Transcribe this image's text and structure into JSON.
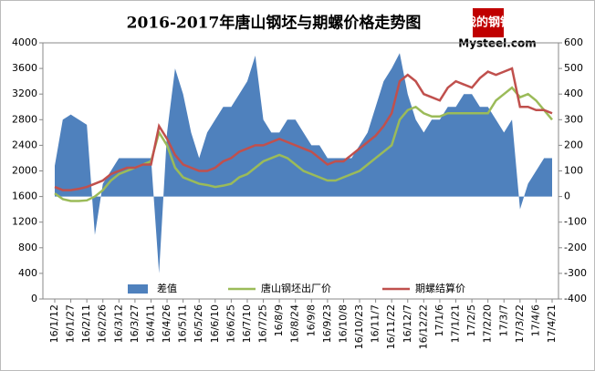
{
  "chart_data": {
    "type": "area-line",
    "title": "2016-2017年唐山钢坯与期螺价格走势图",
    "logo": "我的钢铁",
    "logo_site": "Mysteel.com",
    "categories": [
      "16/1/12",
      null,
      "16/1/27",
      null,
      "16/2/11",
      null,
      "16/2/26",
      null,
      "16/3/12",
      null,
      "16/3/27",
      null,
      "16/4/11",
      null,
      "16/4/26",
      null,
      "16/5/11",
      null,
      "16/5/26",
      null,
      "16/6/10",
      null,
      "16/6/25",
      null,
      "16/7/10",
      null,
      "16/7/25",
      null,
      "16/8/9",
      null,
      "16/8/24",
      null,
      "16/9/8",
      null,
      "16/9/23",
      null,
      "16/10/8",
      null,
      "16/10/23",
      null,
      "16/11/7",
      null,
      "16/11/22",
      null,
      "16/12/7",
      null,
      "16/12/22",
      null,
      "17/1/6",
      null,
      "17/1/21",
      null,
      "17/2/5",
      null,
      "17/2/20",
      null,
      "17/3/7",
      null,
      "17/3/22",
      null,
      "17/4/6",
      null,
      "17/4/21"
    ],
    "series": [
      {
        "name": "差值",
        "kind": "area",
        "axis": "y2",
        "color": "#4f81bd",
        "values": [
          120,
          300,
          320,
          300,
          280,
          -150,
          50,
          100,
          150,
          150,
          150,
          150,
          150,
          -300,
          250,
          500,
          400,
          250,
          150,
          250,
          300,
          350,
          350,
          400,
          450,
          550,
          300,
          250,
          250,
          300,
          300,
          250,
          200,
          200,
          150,
          150,
          150,
          150,
          200,
          250,
          350,
          450,
          500,
          560,
          400,
          300,
          250,
          300,
          300,
          350,
          350,
          400,
          400,
          350,
          350,
          300,
          250,
          300,
          -50,
          50,
          100,
          150,
          150
        ]
      },
      {
        "name": "唐山钢坯出厂价",
        "kind": "line",
        "color": "#9bbb59",
        "values": [
          1650,
          1560,
          1530,
          1530,
          1540,
          1600,
          1700,
          1850,
          1950,
          2000,
          2050,
          2100,
          2150,
          2600,
          2400,
          2050,
          1900,
          1850,
          1800,
          1780,
          1750,
          1770,
          1800,
          1900,
          1950,
          2050,
          2150,
          2200,
          2250,
          2200,
          2100,
          2000,
          1950,
          1900,
          1850,
          1850,
          1900,
          1950,
          2000,
          2100,
          2200,
          2300,
          2400,
          2800,
          2950,
          3000,
          2900,
          2850,
          2850,
          2900,
          2900,
          2900,
          2900,
          2900,
          2900,
          3100,
          3200,
          3300,
          3150,
          3200,
          3100,
          2950,
          2800
        ]
      },
      {
        "name": "期螺结算价",
        "kind": "line",
        "color": "#c0504d",
        "values": [
          1750,
          1700,
          1700,
          1720,
          1750,
          1800,
          1850,
          1950,
          2000,
          2050,
          2050,
          2100,
          2100,
          2700,
          2500,
          2250,
          2100,
          2050,
          2000,
          2000,
          2050,
          2150,
          2200,
          2300,
          2350,
          2400,
          2400,
          2450,
          2500,
          2450,
          2400,
          2350,
          2300,
          2200,
          2100,
          2150,
          2150,
          2250,
          2350,
          2450,
          2550,
          2700,
          2900,
          3400,
          3500,
          3400,
          3200,
          3150,
          3100,
          3300,
          3400,
          3350,
          3300,
          3450,
          3550,
          3500,
          3550,
          3600,
          3000,
          3000,
          2950,
          2950,
          2900
        ]
      }
    ],
    "ylim": [
      0,
      4000
    ],
    "yticks": [
      0,
      400,
      800,
      1200,
      1600,
      2000,
      2400,
      2800,
      3200,
      3600,
      4000
    ],
    "y2lim": [
      -400,
      600
    ],
    "y2ticks": [
      -400,
      -300,
      -200,
      -100,
      0,
      100,
      200,
      300,
      400,
      500,
      600
    ],
    "legend": "bottom"
  }
}
